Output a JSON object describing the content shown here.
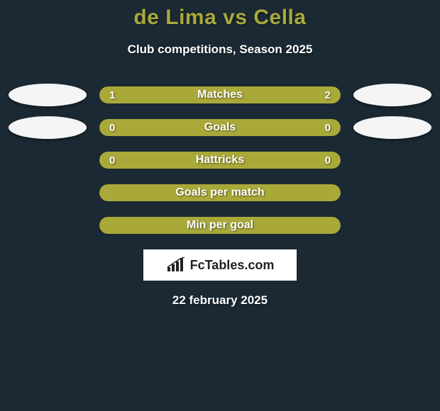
{
  "title": {
    "player1": "de Lima",
    "vs": "vs",
    "player2": "Cella",
    "color": "#a9a93a",
    "fontsize": 30
  },
  "subtitle": "Club competitions, Season 2025",
  "avatars": {
    "left_color": "#f5f5f5",
    "right_color": "#f5f5f5"
  },
  "bar_style": {
    "accent_color": "#a9a93a",
    "track_color": "#1a2933",
    "height": 24,
    "radius": 14,
    "label_fontsize": 16,
    "value_fontsize": 15
  },
  "stats": [
    {
      "label": "Matches",
      "left_value": "1",
      "right_value": "2",
      "left_pct": 33.3,
      "right_pct": 66.7,
      "left_fill": "#a9a93a",
      "right_fill": "#a9a93a",
      "show_avatars": true,
      "show_values": true
    },
    {
      "label": "Goals",
      "left_value": "0",
      "right_value": "0",
      "left_pct": 50,
      "right_pct": 50,
      "left_fill": "#a9a93a",
      "right_fill": "#a9a93a",
      "show_avatars": true,
      "show_values": true
    },
    {
      "label": "Hattricks",
      "left_value": "0",
      "right_value": "0",
      "left_pct": 50,
      "right_pct": 50,
      "left_fill": "#a9a93a",
      "right_fill": "#a9a93a",
      "show_avatars": false,
      "show_values": true
    },
    {
      "label": "Goals per match",
      "left_value": "",
      "right_value": "",
      "left_pct": 100,
      "right_pct": 0,
      "left_fill": "#a9a93a",
      "right_fill": "#a9a93a",
      "show_avatars": false,
      "show_values": false
    },
    {
      "label": "Min per goal",
      "left_value": "",
      "right_value": "",
      "left_pct": 100,
      "right_pct": 0,
      "left_fill": "#a9a93a",
      "right_fill": "#a9a93a",
      "show_avatars": false,
      "show_values": false
    }
  ],
  "logo": {
    "text": "FcTables.com",
    "bg": "#ffffff",
    "fg": "#222222"
  },
  "date": "22 february 2025"
}
